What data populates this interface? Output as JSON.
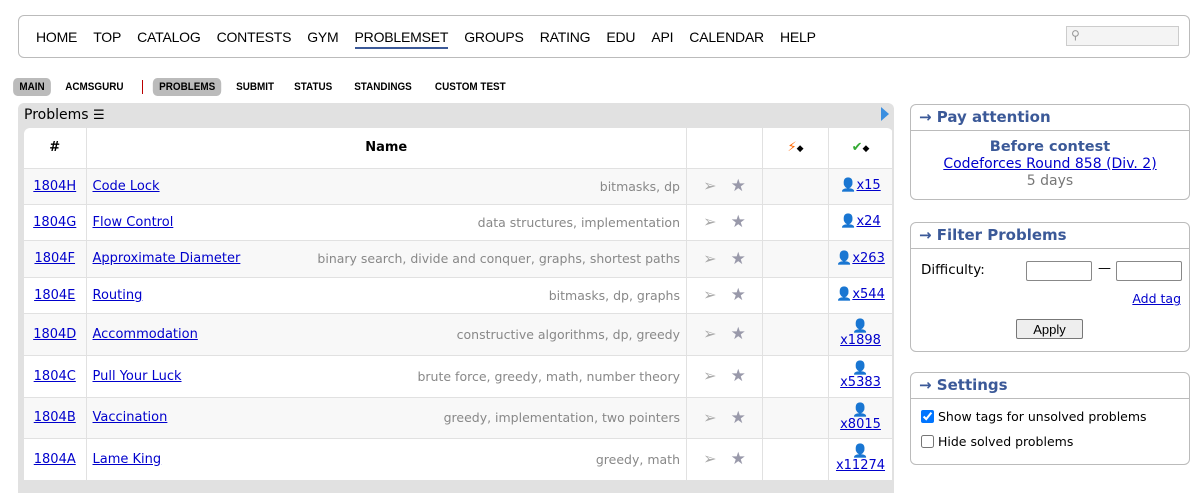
{
  "nav": {
    "items": [
      "HOME",
      "TOP",
      "CATALOG",
      "CONTESTS",
      "GYM",
      "PROBLEMSET",
      "GROUPS",
      "RATING",
      "EDU",
      "API",
      "CALENDAR",
      "HELP"
    ],
    "active": "PROBLEMSET"
  },
  "search": {
    "icon": "magnifier-icon",
    "value": ""
  },
  "submenu": {
    "left": [
      "MAIN",
      "ACMSGURU"
    ],
    "right": [
      "PROBLEMS",
      "SUBMIT",
      "STATUS",
      "STANDINGS",
      "CUSTOM TEST"
    ]
  },
  "problems": {
    "title": "Problems",
    "headers": {
      "num": "#",
      "name": "Name"
    },
    "rows": [
      {
        "id": "1804H",
        "name": "Code Lock",
        "tags": "bitmasks, dp",
        "solved": "x15"
      },
      {
        "id": "1804G",
        "name": "Flow Control",
        "tags": "data structures, implementation",
        "solved": "x24"
      },
      {
        "id": "1804F",
        "name": "Approximate Diameter",
        "tags": "binary search, divide and conquer, graphs, shortest paths",
        "solved": "x263"
      },
      {
        "id": "1804E",
        "name": "Routing",
        "tags": "bitmasks, dp, graphs",
        "solved": "x544"
      },
      {
        "id": "1804D",
        "name": "Accommodation",
        "tags": "constructive algorithms, dp, greedy",
        "solved": "x1898"
      },
      {
        "id": "1804C",
        "name": "Pull Your Luck",
        "tags": "brute force, greedy, math, number theory",
        "solved": "x5383"
      },
      {
        "id": "1804B",
        "name": "Vaccination",
        "tags": "greedy, implementation, two pointers",
        "solved": "x8015"
      },
      {
        "id": "1804A",
        "name": "Lame King",
        "tags": "greedy, math",
        "solved": "x11274"
      }
    ]
  },
  "pay": {
    "title": "→ Pay attention",
    "subtitle": "Before contest",
    "contest": "Codeforces Round 858 (Div. 2)",
    "time": "5 days"
  },
  "filter": {
    "title": "→ Filter Problems",
    "difficulty": "Difficulty:",
    "dash": "—",
    "add_tag": "Add tag",
    "apply": "Apply"
  },
  "settings": {
    "title": "→ Settings",
    "show_tags": "Show tags for unsolved problems",
    "hide_solved": "Hide solved problems",
    "show_tags_checked": true,
    "hide_solved_checked": false
  }
}
